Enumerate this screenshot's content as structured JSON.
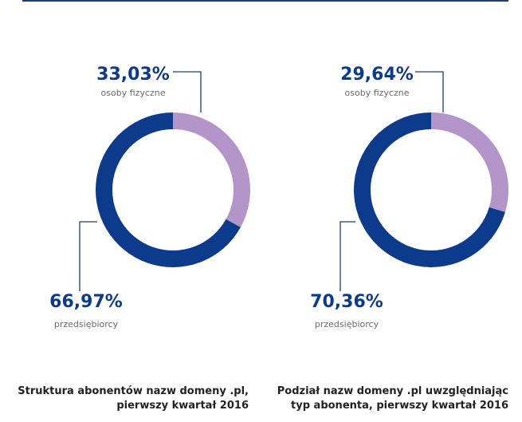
{
  "colors": {
    "dark": "#0d3b8c",
    "light": "#b495c9",
    "leader": "#1e3f7a",
    "value_text": "#0d3b8c",
    "sublabel_text": "#6b6b6b"
  },
  "chart_data": [
    {
      "type": "pie",
      "variant": "donut",
      "slices": [
        {
          "label": "osoby fizyczne",
          "value": 33.03,
          "value_text": "33,03%"
        },
        {
          "label": "przedsiębiorcy",
          "value": 66.97,
          "value_text": "66,97%"
        }
      ],
      "caption_line1": "Struktura abonentów nazw domeny .pl,",
      "caption_line2": "pierwszy kwartał 2016"
    },
    {
      "type": "pie",
      "variant": "donut",
      "slices": [
        {
          "label": "osoby fizyczne",
          "value": 29.64,
          "value_text": "29,64%"
        },
        {
          "label": "przedsiębiorcy",
          "value": 70.36,
          "value_text": "70,36%"
        }
      ],
      "caption_line1": "Podział nazw domeny .pl uwzględniając",
      "caption_line2": "typ abonenta, pierwszy kwartał 2016"
    }
  ]
}
